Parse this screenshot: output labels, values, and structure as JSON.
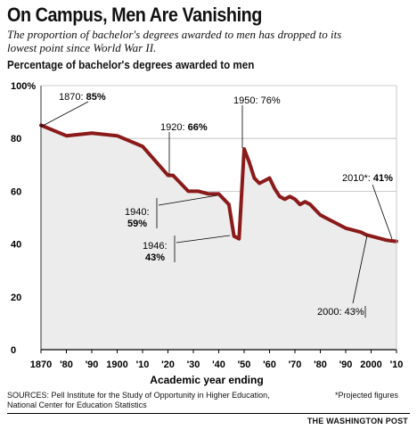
{
  "header": {
    "title": "On Campus, Men Are Vanishing",
    "subtitle": "The proportion of bachelor's degrees awarded to men has dropped to its lowest point since World War II."
  },
  "footer": {
    "sources": "SOURCES: Pell Institute for the Study of Opportunity in Higher Education, National Center for Education Statistics",
    "footnote": "*Projected figures",
    "credit": "THE WASHINGTON POST"
  },
  "chart_data": {
    "type": "line",
    "title": "Percentage of bachelor's degrees awarded to men",
    "xlabel": "Academic year ending",
    "ylabel": "",
    "xlim": [
      1870,
      2010
    ],
    "ylim": [
      0,
      100
    ],
    "grid": true,
    "y_ticks": [
      "0",
      "20",
      "40",
      "60",
      "80",
      "100%"
    ],
    "x_ticks": [
      "1870",
      "'80",
      "'90",
      "1900",
      "'10",
      "'20",
      "'30",
      "'40",
      "'50",
      "'60",
      "'70",
      "'80",
      "'90",
      "2000",
      "'10"
    ],
    "line_color": "#8b1a1a",
    "series": [
      {
        "x": [
          1870,
          1880,
          1890,
          1900,
          1910,
          1920,
          1922,
          1928,
          1932,
          1936,
          1940,
          1942,
          1944,
          1946,
          1948,
          1950,
          1952,
          1954,
          1956,
          1958,
          1960,
          1962,
          1964,
          1966,
          1968,
          1970,
          1972,
          1974,
          1976,
          1978,
          1980,
          1982,
          1984,
          1986,
          1988,
          1990,
          1992,
          1994,
          1996,
          1998,
          2000,
          2002,
          2004,
          2006,
          2008,
          2010
        ],
        "y": [
          85,
          81,
          82,
          81,
          77,
          66,
          66,
          60,
          60,
          59,
          59,
          57,
          55,
          43,
          42,
          76,
          71,
          65,
          63,
          64,
          65,
          61,
          58,
          57,
          58,
          57,
          55,
          56,
          55,
          53,
          51,
          50,
          49,
          48,
          47,
          46,
          45.5,
          45,
          44.5,
          43.5,
          43,
          42.5,
          42,
          41.5,
          41.2,
          41
        ]
      }
    ],
    "annotations": [
      {
        "label": "1870: ",
        "value": "85%"
      },
      {
        "label": "1920: ",
        "value": "66%"
      },
      {
        "label": "1950: 76%",
        "value": ""
      },
      {
        "label": "1940:",
        "value": "59%"
      },
      {
        "label": "1946:",
        "value": "43%"
      },
      {
        "label": "2010*: ",
        "value": "41%"
      },
      {
        "label": "2000: 43%",
        "value": ""
      }
    ]
  }
}
